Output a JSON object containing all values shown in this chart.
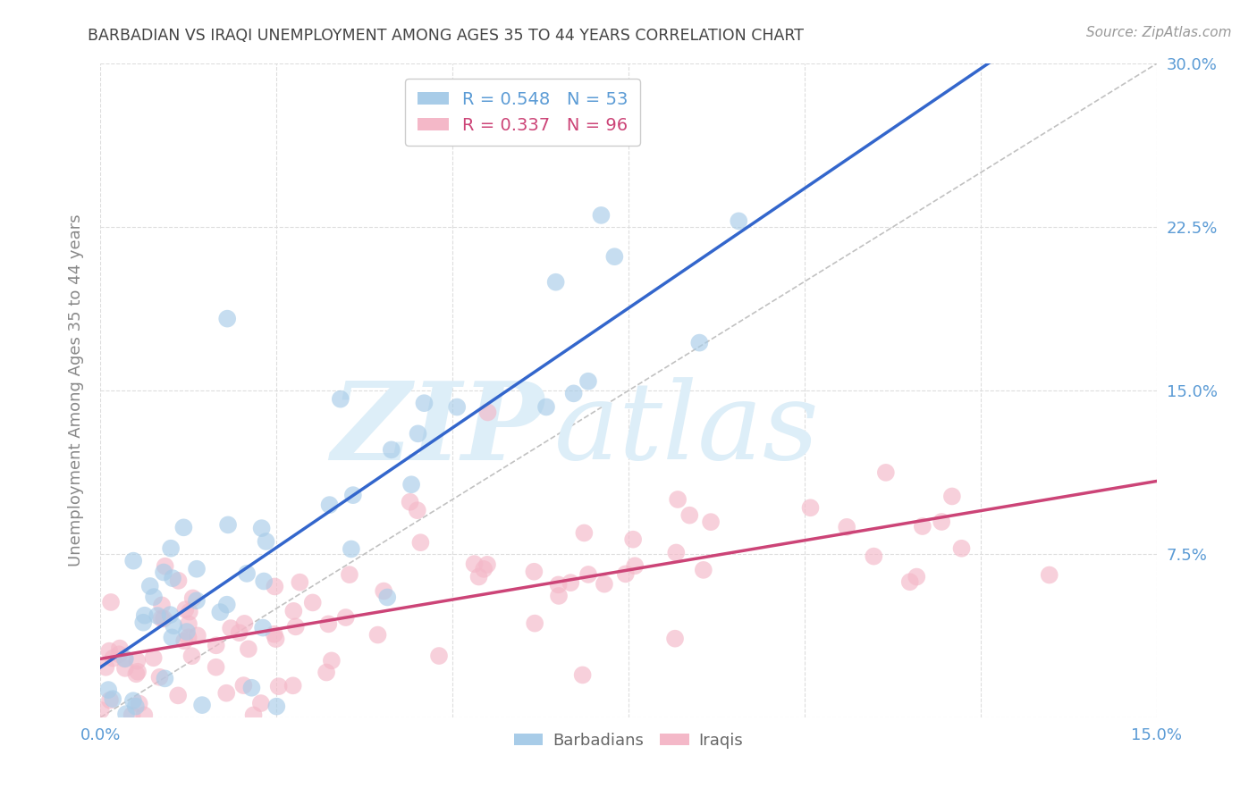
{
  "title": "BARBADIAN VS IRAQI UNEMPLOYMENT AMONG AGES 35 TO 44 YEARS CORRELATION CHART",
  "source": "Source: ZipAtlas.com",
  "ylabel": "Unemployment Among Ages 35 to 44 years",
  "xlim": [
    0.0,
    0.15
  ],
  "ylim": [
    0.0,
    0.3
  ],
  "barbadian_color": "#a8cce8",
  "iraqi_color": "#f4b8c8",
  "barbadian_line_color": "#3366cc",
  "iraqi_line_color": "#cc4477",
  "dashed_line_color": "#bbbbbb",
  "legend_R_barbadian": "R = 0.548",
  "legend_N_barbadian": "N = 53",
  "legend_R_iraqi": "R = 0.337",
  "legend_N_iraqi": "N = 96",
  "title_color": "#444444",
  "source_color": "#999999",
  "watermark_zip": "ZIP",
  "watermark_atlas": "atlas",
  "watermark_color": "#ddeef8",
  "background_color": "#ffffff",
  "grid_color": "#dddddd",
  "tick_label_color": "#5b9bd5",
  "ylabel_color": "#888888",
  "legend_text_color_1": "#5b9bd5",
  "legend_text_color_2": "#cc4477",
  "bottom_legend_color": "#666666"
}
